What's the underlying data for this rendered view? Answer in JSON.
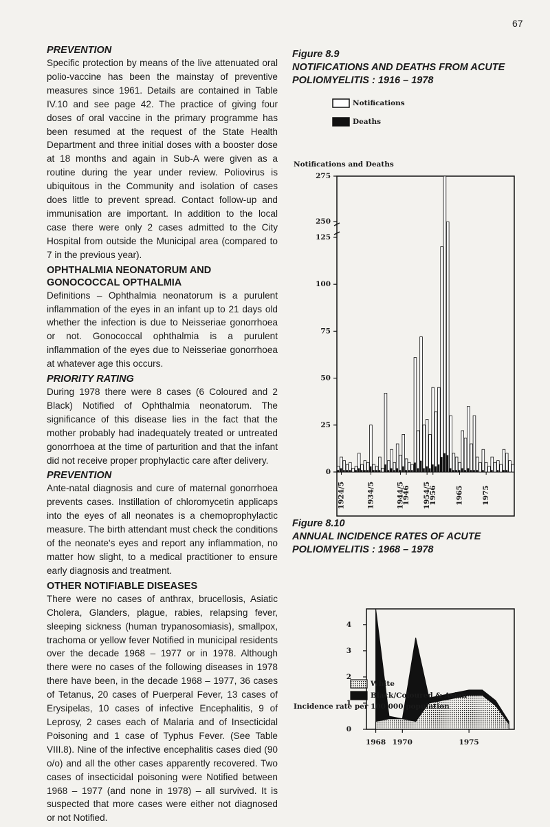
{
  "page_number": "67",
  "document": {
    "sections": [
      {
        "heading": "PREVENTION",
        "text": "Specific protection by means of the live attenuated oral polio-vaccine has been the mainstay of preventive measures since 1961. Details are contained in Table IV.10 and see page 42. The practice of giving four doses of oral vaccine in the primary programme has been resumed at the request of the State Health Department and three initial doses with a booster dose at 18 months and again in Sub-A were given as a routine during the year under review. Poliovirus is ubiquitous in the Community and isolation of cases does little to prevent spread. Contact follow-up and immunisation are important. In addition to the local case there were only 2 cases admitted to the City Hospital from outside the Municipal area (compared to 7 in the previous year)."
      },
      {
        "heading": "OPHTHALMIA NEONATORUM AND GONOCOCCAL OPTHALMIA",
        "text": "Definitions – Ophthalmia neonatorum is a purulent inflammation of the eyes in an infant up to 21 days old whether the infection is due to Neisseriae gonorrhoea or not. Gonococcal ophthalmia is a purulent inflammation of the eyes due to Neisseriae gonorrhoea at whatever age this occurs."
      },
      {
        "heading": "PRIORITY RATING",
        "text": "During 1978 there were 8 cases (6 Coloured and 2 Black) Notified of Ophthalmia neonatorum. The significance of this disease lies in the fact that the mother probably had inadequately treated or untreated gonorrhoea at the time of parturition and that the infant did not receive proper prophylactic care after delivery."
      },
      {
        "heading": "PREVENTION",
        "text": "Ante-natal diagnosis and cure of maternal gonorrhoea prevents cases. Instillation of chloromycetin applicaps into the eyes of all neonates is a chemoprophylactic measure. The birth attendant must check the conditions of the neonate's eyes and report any inflammation, no matter how slight, to a medical practitioner to ensure early diagnosis and treatment."
      },
      {
        "heading": "OTHER NOTIFIABLE DISEASES",
        "text": "There were no cases of anthrax, brucellosis, Asiatic Cholera, Glanders, plague, rabies, relapsing fever, sleeping sickness (human trypanosomiasis), smallpox, trachoma or yellow fever Notified in municipal residents over the decade 1968 – 1977 or in 1978. Although there were no cases of the following diseases in 1978 there have been, in the decade 1968 – 1977, 36 cases of Tetanus, 20 cases of Puerperal Fever, 13 cases of Erysipelas, 10 cases of infective Encephalitis, 9 of Leprosy, 2 cases each of Malaria and of Insecticidal Poisoning and 1 case of Typhus Fever. (See Table VIII.8). Nine of the infective encephalitis cases died (90 o/o) and all the other cases apparently recovered. Two cases of insecticidal poisoning were Notified between 1968 – 1977 (and none in 1978) – all survived. It is suspected that more cases were either not diagnosed or not Notified."
      }
    ]
  },
  "chart_data": [
    {
      "type": "bar",
      "figure": "Figure 8.9",
      "title": "NOTIFICATIONS AND DEATHS FROM ACUTE POLIOMYELITIS : 1916 – 1978",
      "y_label": "Notifications and Deaths",
      "categories": [
        null,
        "1924/5",
        null,
        null,
        null,
        null,
        null,
        null,
        null,
        null,
        null,
        "1934/5",
        null,
        null,
        null,
        null,
        null,
        null,
        null,
        null,
        null,
        "1944/5",
        null,
        "1946",
        null,
        null,
        null,
        null,
        null,
        null,
        "1954/5",
        null,
        "1956",
        null,
        null,
        null,
        null,
        null,
        null,
        null,
        null,
        "1965",
        null,
        null,
        null,
        null,
        null,
        null,
        null,
        null,
        "1975",
        null,
        null,
        null,
        null,
        null,
        null,
        null,
        null,
        null
      ],
      "series": [
        {
          "name": "Notifications",
          "color": "#ffffff",
          "values": [
            3,
            8,
            6,
            4,
            5,
            2,
            3,
            10,
            4,
            6,
            5,
            25,
            4,
            3,
            8,
            2,
            42,
            6,
            12,
            5,
            15,
            9,
            20,
            7,
            5,
            4,
            61,
            22,
            72,
            25,
            28,
            20,
            45,
            32,
            45,
            120,
            275,
            248,
            30,
            10,
            8,
            5,
            22,
            18,
            35,
            15,
            30,
            8,
            5,
            12,
            5,
            3,
            8,
            5,
            6,
            4,
            12,
            10,
            6,
            4
          ]
        },
        {
          "name": "Deaths",
          "color": "#111111",
          "values": [
            1,
            2,
            1,
            1,
            1,
            0,
            1,
            2,
            1,
            1,
            1,
            3,
            1,
            1,
            1,
            0,
            4,
            1,
            2,
            1,
            2,
            1,
            3,
            1,
            1,
            1,
            5,
            2,
            6,
            2,
            3,
            2,
            4,
            3,
            4,
            8,
            10,
            9,
            2,
            1,
            1,
            1,
            2,
            1,
            2,
            1,
            1,
            1,
            0,
            1,
            0,
            0,
            1,
            0,
            1,
            0,
            1,
            1,
            0,
            0
          ]
        }
      ],
      "ylim": [
        0,
        275
      ],
      "yticks": [
        0,
        25,
        50,
        75,
        100,
        125,
        250,
        275
      ],
      "axis_break": [
        125,
        250
      ]
    },
    {
      "type": "area",
      "figure": "Figure 8.10",
      "title": "ANNUAL INCIDENCE RATES OF ACUTE POLIOMYELITIS : 1968 – 1978",
      "y_label": "Incidence rate per 100 000 population",
      "x": [
        1968,
        1969,
        1970,
        1971,
        1972,
        1973,
        1974,
        1975,
        1976,
        1977,
        1978
      ],
      "series": [
        {
          "name": "Black/Coloured & Asian",
          "color": "#111111",
          "values": [
            4.6,
            0.5,
            0.4,
            3.5,
            1.2,
            1.3,
            1.4,
            1.5,
            1.5,
            1.1,
            0.3
          ]
        },
        {
          "name": "White",
          "color": "#111111",
          "pattern": "dotted",
          "values": [
            0.3,
            0.4,
            0.4,
            0.3,
            1.0,
            1.1,
            1.2,
            1.3,
            1.3,
            0.9,
            0.2
          ]
        }
      ],
      "xlim": [
        1967.3,
        1978.4
      ],
      "xticks": [
        1968,
        1970,
        1975
      ],
      "ylim": [
        0,
        4.6
      ],
      "yticks": [
        0,
        1,
        2,
        3,
        4
      ]
    }
  ]
}
